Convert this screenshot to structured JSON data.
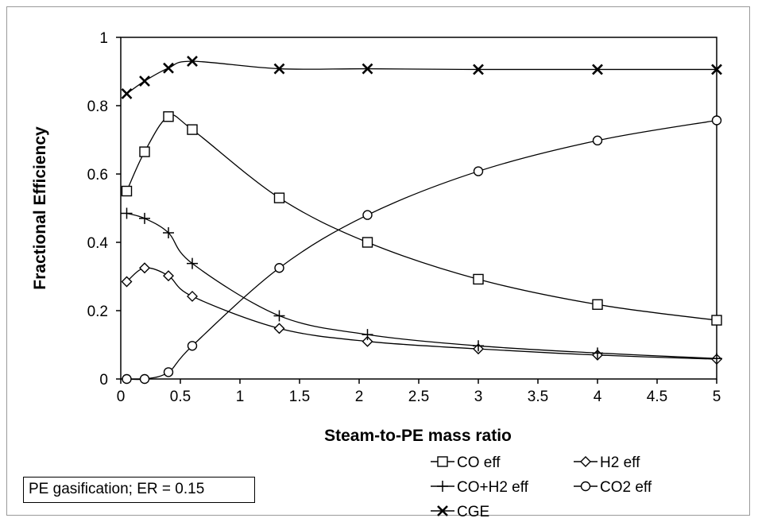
{
  "chart_data": {
    "type": "line",
    "title": "",
    "xlabel": "Steam-to-PE mass ratio",
    "ylabel": "Fractional Efficiency",
    "xlim": [
      0,
      5
    ],
    "ylim": [
      0,
      1
    ],
    "x_ticks": [
      "0",
      "0.5",
      "1",
      "1.5",
      "2",
      "2.5",
      "3",
      "3.5",
      "4",
      "4.5",
      "5"
    ],
    "y_ticks": [
      "0",
      "0.2",
      "0.4",
      "0.6",
      "0.8",
      "1"
    ],
    "grid": false,
    "legend_placement": "below plot, right",
    "series": [
      {
        "name": "CO eff",
        "marker": "square",
        "x": [
          0.05,
          0.2,
          0.4,
          0.6,
          1.33,
          2.07,
          3,
          4,
          5
        ],
        "y": [
          0.55,
          0.665,
          0.768,
          0.73,
          0.53,
          0.4,
          0.292,
          0.218,
          0.172
        ]
      },
      {
        "name": "H2 eff",
        "marker": "diamond",
        "x": [
          0.05,
          0.2,
          0.4,
          0.6,
          1.33,
          2.07,
          3,
          4,
          5
        ],
        "y": [
          0.285,
          0.325,
          0.302,
          0.242,
          0.148,
          0.11,
          0.088,
          0.07,
          0.058
        ]
      },
      {
        "name": "CO+H2 eff",
        "marker": "plus",
        "x": [
          0.05,
          0.2,
          0.4,
          0.6,
          1.33,
          2.07,
          3,
          4,
          5
        ],
        "y": [
          0.485,
          0.47,
          0.428,
          0.338,
          0.185,
          0.13,
          0.097,
          0.076,
          0.06
        ]
      },
      {
        "name": "CO2 eff",
        "marker": "circle",
        "x": [
          0.05,
          0.2,
          0.4,
          0.6,
          1.33,
          2.07,
          3,
          4,
          5
        ],
        "y": [
          0.0,
          0.0,
          0.02,
          0.097,
          0.325,
          0.48,
          0.608,
          0.698,
          0.757
        ]
      },
      {
        "name": "CGE",
        "marker": "x",
        "x": [
          0.05,
          0.2,
          0.4,
          0.6,
          1.33,
          2.07,
          3,
          4,
          5
        ],
        "y": [
          0.835,
          0.872,
          0.91,
          0.93,
          0.908,
          0.908,
          0.906,
          0.906,
          0.906
        ]
      }
    ],
    "annotation": "PE gasification; ER = 0.15"
  }
}
